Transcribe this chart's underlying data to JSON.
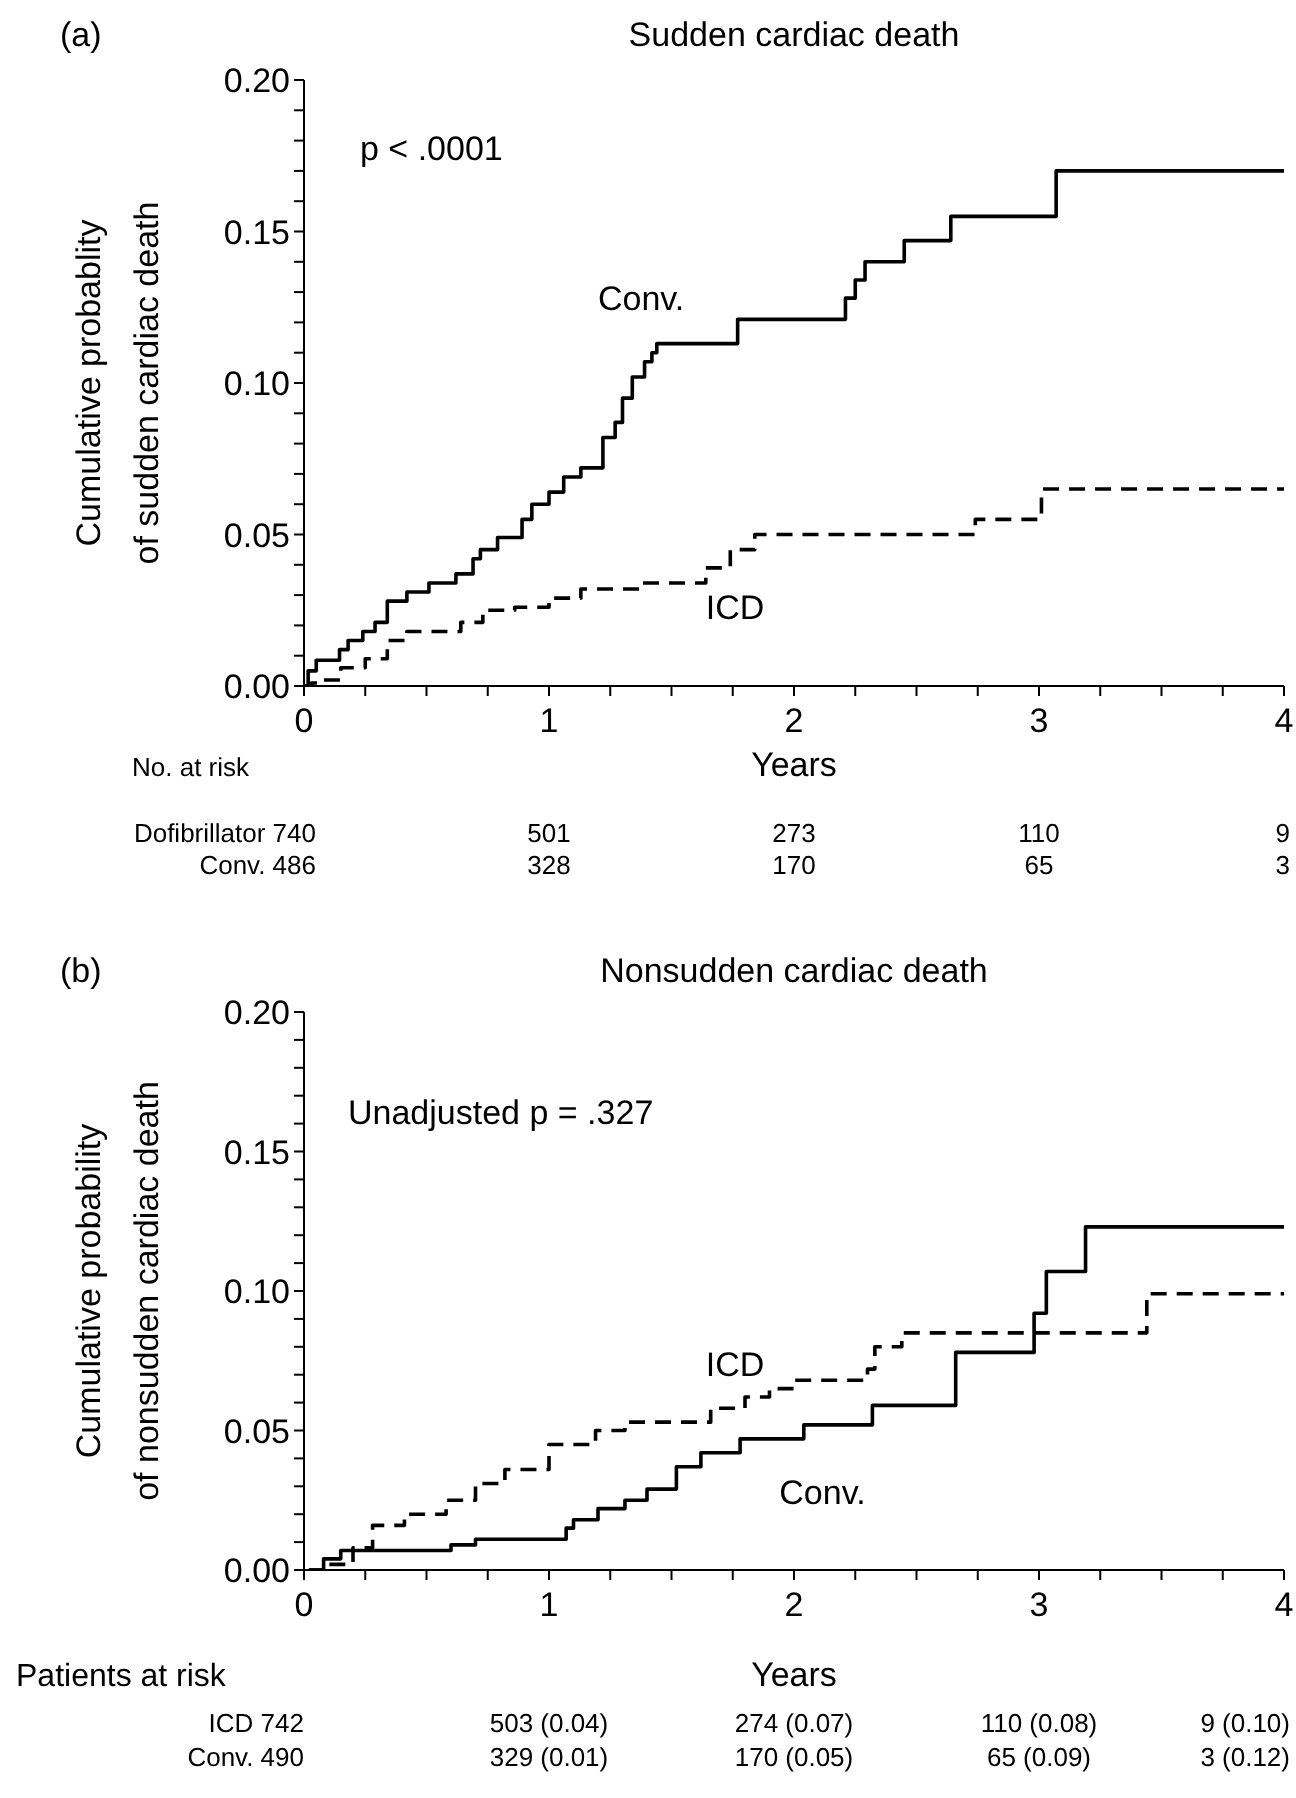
{
  "chart_data": [
    {
      "type": "step",
      "title": "Sudden cardiac death",
      "xlabel": "Years",
      "ylabel": "Cumulative probablity\nof sudden cardiac death",
      "xlim": [
        0,
        4
      ],
      "xticks": [
        0,
        {
          "value": 0.25,
          "label": null
        },
        {
          "value": 0.5,
          "label": null
        },
        {
          "value": 0.75,
          "label": null
        },
        1,
        {
          "value": 1.25,
          "label": null
        },
        {
          "value": 1.5,
          "label": null
        },
        {
          "value": 1.75,
          "label": null
        },
        2,
        {
          "value": 2.25,
          "label": null
        },
        {
          "value": 2.5,
          "label": null
        },
        {
          "value": 2.75,
          "label": null
        },
        3,
        {
          "value": 3.25,
          "label": null
        },
        {
          "value": 3.5,
          "label": null
        },
        {
          "value": 3.75,
          "label": null
        },
        4
      ],
      "ylim": [
        0,
        0.2
      ],
      "yticks": [
        {
          "value": 0,
          "label": "0.00"
        },
        {
          "value": 0.01,
          "label": null
        },
        {
          "value": 0.02,
          "label": null
        },
        {
          "value": 0.03,
          "label": null
        },
        {
          "value": 0.04,
          "label": null
        },
        {
          "value": 0.05,
          "label": "0.05"
        },
        {
          "value": 0.06,
          "label": null
        },
        {
          "value": 0.07,
          "label": null
        },
        {
          "value": 0.08,
          "label": null
        },
        {
          "value": 0.09,
          "label": null
        },
        {
          "value": 0.1,
          "label": "0.10"
        },
        {
          "value": 0.11,
          "label": null
        },
        {
          "value": 0.12,
          "label": null
        },
        {
          "value": 0.13,
          "label": null
        },
        {
          "value": 0.14,
          "label": null
        },
        {
          "value": 0.15,
          "label": "0.15"
        },
        {
          "value": 0.16,
          "label": null
        },
        {
          "value": 0.17,
          "label": null
        },
        {
          "value": 0.18,
          "label": null
        },
        {
          "value": 0.19,
          "label": null
        },
        {
          "value": 0.2,
          "label": "0.20"
        }
      ],
      "series": [
        {
          "name": "Conv.",
          "color": "#000000",
          "line_style": "solid",
          "x": [
            0,
            0.017,
            0.05,
            0.145,
            0.18,
            0.24,
            0.29,
            0.34,
            0.42,
            0.51,
            0.62,
            0.69,
            0.72,
            0.79,
            0.89,
            0.93,
            1.0,
            1.06,
            1.13,
            1.22,
            1.27,
            1.3,
            1.34,
            1.39,
            1.42,
            1.44,
            1.77,
            2.21,
            2.25,
            2.29,
            2.45,
            2.64,
            3.07,
            4.0
          ],
          "values": [
            0,
            0.005,
            0.0085,
            0.012,
            0.015,
            0.018,
            0.021,
            0.028,
            0.031,
            0.034,
            0.037,
            0.042,
            0.045,
            0.049,
            0.055,
            0.06,
            0.064,
            0.069,
            0.072,
            0.082,
            0.087,
            0.095,
            0.102,
            0.107,
            0.11,
            0.113,
            0.121,
            0.128,
            0.134,
            0.14,
            0.147,
            0.155,
            0.17,
            0.17
          ]
        },
        {
          "name": "ICD",
          "color": "#000000",
          "line_style": "dashed",
          "x": [
            0,
            0.03,
            0.08,
            0.15,
            0.25,
            0.34,
            0.42,
            0.64,
            0.73,
            0.86,
            1.0,
            1.13,
            1.37,
            1.54,
            1.64,
            1.74,
            1.84,
            2.74,
            3.01,
            4.0
          ],
          "values": [
            0,
            0.001,
            0.002,
            0.006,
            0.009,
            0.015,
            0.018,
            0.021,
            0.025,
            0.026,
            0.029,
            0.032,
            0.034,
            0.034,
            0.039,
            0.045,
            0.05,
            0.055,
            0.065,
            0.065
          ]
        }
      ],
      "annotations": [
        "(a)",
        "p < .0001",
        "No. at risk",
        "Dofibrillator 740",
        "501",
        "273",
        "110",
        "9",
        "Conv. 486",
        "328",
        "170",
        "65",
        "3"
      ]
    },
    {
      "type": "step",
      "title": "Nonsudden cardiac death",
      "xlabel": "Years",
      "ylabel": "Cumulative probability\nof nonsudden cardiac death",
      "xlim": [
        0,
        4
      ],
      "xticks": [
        0,
        {
          "value": 0.25,
          "label": null
        },
        {
          "value": 0.5,
          "label": null
        },
        {
          "value": 0.75,
          "label": null
        },
        1,
        {
          "value": 1.25,
          "label": null
        },
        {
          "value": 1.5,
          "label": null
        },
        {
          "value": 1.75,
          "label": null
        },
        2,
        {
          "value": 2.25,
          "label": null
        },
        {
          "value": 2.5,
          "label": null
        },
        {
          "value": 2.75,
          "label": null
        },
        3,
        {
          "value": 3.25,
          "label": null
        },
        {
          "value": 3.5,
          "label": null
        },
        {
          "value": 3.75,
          "label": null
        },
        4
      ],
      "ylim": [
        0,
        0.2
      ],
      "yticks": [
        {
          "value": 0,
          "label": "0.00"
        },
        {
          "value": 0.01,
          "label": null
        },
        {
          "value": 0.02,
          "label": null
        },
        {
          "value": 0.03,
          "label": null
        },
        {
          "value": 0.04,
          "label": null
        },
        {
          "value": 0.05,
          "label": "0.05"
        },
        {
          "value": 0.06,
          "label": null
        },
        {
          "value": 0.07,
          "label": null
        },
        {
          "value": 0.08,
          "label": null
        },
        {
          "value": 0.09,
          "label": null
        },
        {
          "value": 0.1,
          "label": "0.10"
        },
        {
          "value": 0.11,
          "label": null
        },
        {
          "value": 0.12,
          "label": null
        },
        {
          "value": 0.13,
          "label": null
        },
        {
          "value": 0.14,
          "label": null
        },
        {
          "value": 0.15,
          "label": "0.15"
        },
        {
          "value": 0.16,
          "label": null
        },
        {
          "value": 0.17,
          "label": null
        },
        {
          "value": 0.18,
          "label": null
        },
        {
          "value": 0.19,
          "label": null
        },
        {
          "value": 0.2,
          "label": "0.20"
        }
      ],
      "series": [
        {
          "name": "ICD",
          "color": "#000000",
          "line_style": "dashed",
          "x": [
            0.02,
            0.09,
            0.2,
            0.28,
            0.41,
            0.58,
            0.7,
            0.82,
            1.0,
            1.19,
            1.31,
            1.66,
            1.8,
            1.9,
            2.0,
            2.3,
            2.33,
            2.44,
            3.44,
            4.0
          ],
          "values": [
            0,
            0.002,
            0.008,
            0.016,
            0.02,
            0.025,
            0.031,
            0.036,
            0.045,
            0.05,
            0.053,
            0.058,
            0.062,
            0.065,
            0.068,
            0.072,
            0.08,
            0.085,
            0.099,
            0.099
          ]
        },
        {
          "name": "Conv.",
          "color": "#000000",
          "line_style": "solid",
          "x": [
            0.02,
            0.08,
            0.15,
            0.6,
            0.7,
            1.07,
            1.1,
            1.2,
            1.31,
            1.4,
            1.52,
            1.62,
            1.78,
            2.04,
            2.32,
            2.66,
            2.98,
            3.03,
            3.19,
            4.0
          ],
          "values": [
            0,
            0.004,
            0.007,
            0.009,
            0.011,
            0.015,
            0.018,
            0.022,
            0.025,
            0.029,
            0.037,
            0.042,
            0.047,
            0.052,
            0.059,
            0.078,
            0.092,
            0.107,
            0.123,
            0.123
          ]
        }
      ],
      "annotations": [
        "(b)",
        "Unadjusted p = .327",
        "Patients at risk",
        "ICD 742",
        "503 (0.04)",
        "274 (0.07)",
        "110 (0.08)",
        "9 (0.10)",
        "Conv. 490",
        "329 (0.01)",
        "170 (0.05)",
        "65 (0.09)",
        "3 (0.12)"
      ]
    }
  ]
}
